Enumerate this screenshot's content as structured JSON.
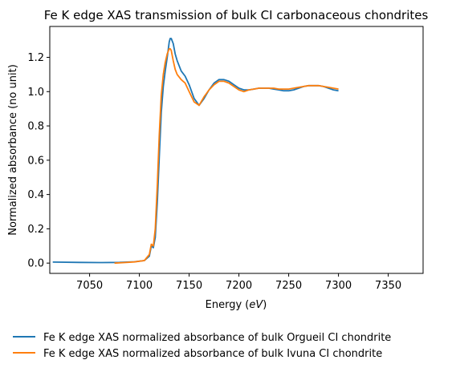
{
  "chart_data": {
    "type": "line",
    "title": "Fe K edge XAS transmission of bulk CI carbonaceous chondrites",
    "xlabel_prefix": "Energy (",
    "xlabel_unit": "eV",
    "xlabel_suffix": ")",
    "ylabel": "Normalized absorbance (no unit)",
    "xlim": [
      7010,
      7385
    ],
    "ylim": [
      -0.06,
      1.38
    ],
    "xticks": [
      7050,
      7100,
      7150,
      7200,
      7250,
      7300,
      7350
    ],
    "yticks": [
      0.0,
      0.2,
      0.4,
      0.6,
      0.8,
      1.0,
      1.2
    ],
    "legend_position": "below-plot",
    "grid": false,
    "series": [
      {
        "name": "Fe K edge XAS normalized absorbance of bulk Orgueil CI chondrite",
        "color": "#1f77b4",
        "x": [
          7013,
          7040,
          7060,
          7080,
          7095,
          7105,
          7110,
          7112,
          7114,
          7116,
          7118,
          7120,
          7122,
          7124,
          7126,
          7128,
          7130,
          7131,
          7132,
          7134,
          7136,
          7138,
          7142,
          7146,
          7150,
          7155,
          7160,
          7165,
          7170,
          7175,
          7180,
          7185,
          7190,
          7195,
          7200,
          7205,
          7210,
          7215,
          7220,
          7225,
          7230,
          7235,
          7240,
          7245,
          7250,
          7255,
          7260,
          7265,
          7270,
          7275,
          7280,
          7285,
          7290,
          7295,
          7300
        ],
        "y": [
          0.006,
          0.004,
          0.003,
          0.004,
          0.008,
          0.015,
          0.04,
          0.1,
          0.09,
          0.15,
          0.35,
          0.62,
          0.88,
          1.03,
          1.12,
          1.2,
          1.29,
          1.31,
          1.31,
          1.28,
          1.22,
          1.18,
          1.12,
          1.09,
          1.04,
          0.96,
          0.92,
          0.96,
          1.01,
          1.05,
          1.07,
          1.07,
          1.06,
          1.04,
          1.02,
          1.01,
          1.01,
          1.015,
          1.02,
          1.02,
          1.02,
          1.015,
          1.01,
          1.005,
          1.005,
          1.01,
          1.02,
          1.03,
          1.035,
          1.035,
          1.035,
          1.03,
          1.02,
          1.01,
          1.005
        ]
      },
      {
        "name": "Fe K edge XAS normalized absorbance of bulk Ivuna CI chondrite",
        "color": "#ff7f0e",
        "x": [
          7075,
          7085,
          7095,
          7105,
          7110,
          7112,
          7114,
          7116,
          7118,
          7120,
          7122,
          7124,
          7126,
          7128,
          7130,
          7131,
          7132,
          7134,
          7136,
          7138,
          7142,
          7146,
          7150,
          7155,
          7160,
          7165,
          7170,
          7175,
          7180,
          7185,
          7190,
          7195,
          7200,
          7205,
          7210,
          7215,
          7220,
          7225,
          7230,
          7235,
          7240,
          7245,
          7250,
          7255,
          7260,
          7265,
          7270,
          7275,
          7280,
          7285,
          7290,
          7295,
          7300
        ],
        "y": [
          0.0,
          0.003,
          0.007,
          0.015,
          0.05,
          0.11,
          0.1,
          0.2,
          0.45,
          0.75,
          0.98,
          1.1,
          1.17,
          1.22,
          1.25,
          1.25,
          1.24,
          1.18,
          1.13,
          1.1,
          1.07,
          1.05,
          1.0,
          0.94,
          0.92,
          0.97,
          1.01,
          1.04,
          1.06,
          1.06,
          1.05,
          1.03,
          1.01,
          1.0,
          1.01,
          1.015,
          1.02,
          1.02,
          1.02,
          1.02,
          1.015,
          1.015,
          1.015,
          1.02,
          1.025,
          1.03,
          1.035,
          1.035,
          1.035,
          1.03,
          1.025,
          1.02,
          1.015
        ]
      }
    ]
  }
}
